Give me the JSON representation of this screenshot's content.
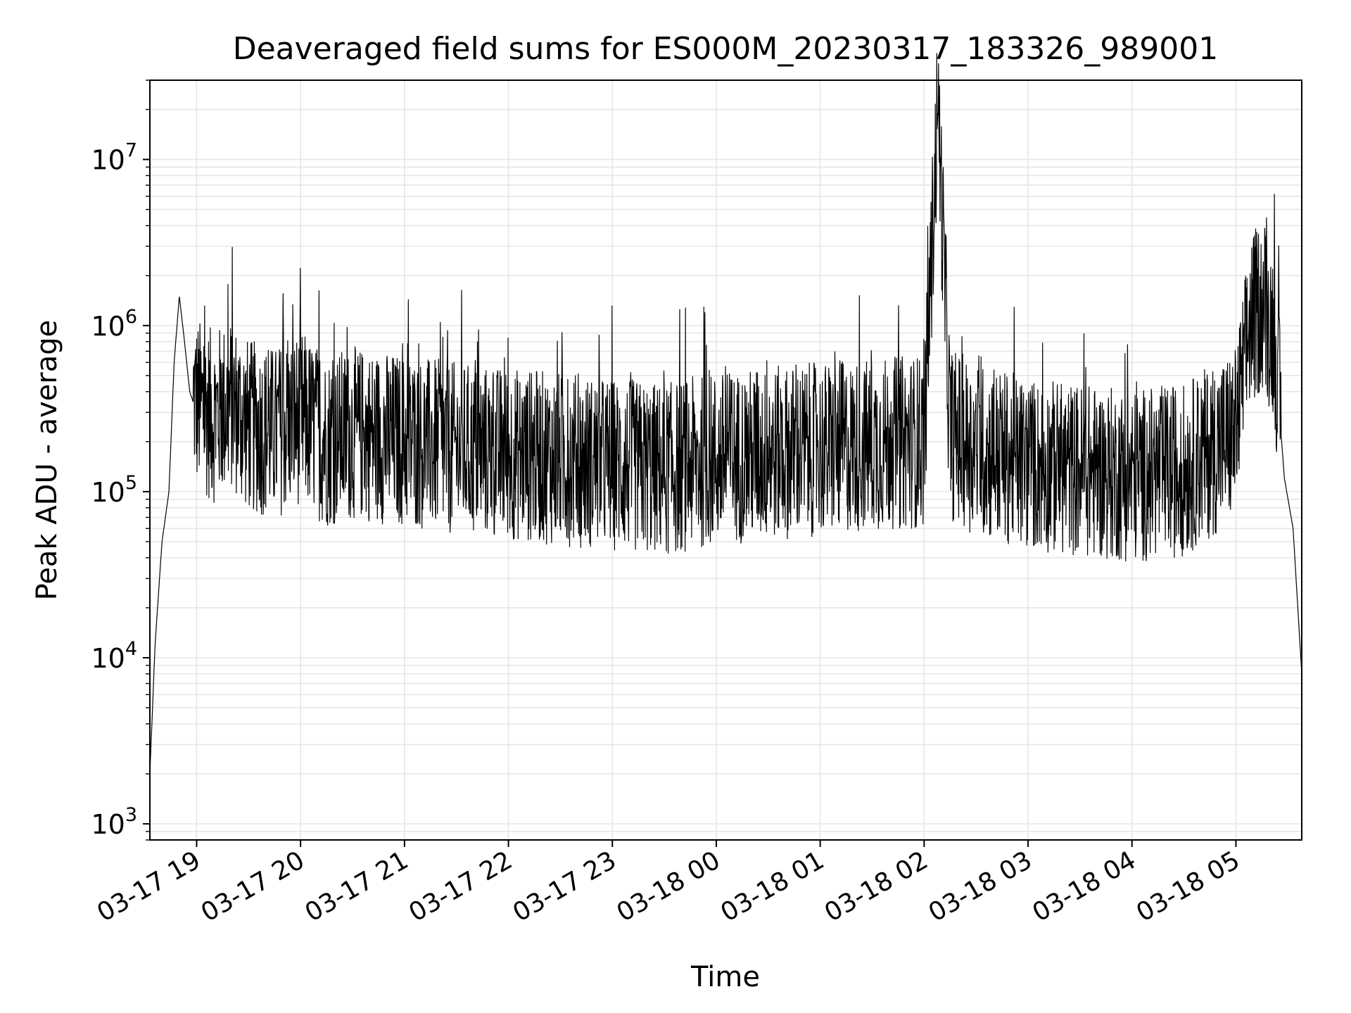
{
  "chart_data": {
    "type": "line",
    "title": "Deaveraged field sums for ES000M_20230317_183326_989001",
    "xlabel": "Time",
    "ylabel": "Peak ADU - average",
    "yscale": "log",
    "ylim": [
      800,
      30000000
    ],
    "xlim": [
      "2023-03-17 18:33",
      "2023-03-18 05:38"
    ],
    "x_ticks": [
      "03-17 19",
      "03-17 20",
      "03-17 21",
      "03-17 22",
      "03-17 23",
      "03-18 00",
      "03-18 01",
      "03-18 02",
      "03-18 03",
      "03-18 04",
      "03-18 05"
    ],
    "y_ticks": [
      {
        "value": 1000,
        "base": "10",
        "exp": "3"
      },
      {
        "value": 10000,
        "base": "10",
        "exp": "4"
      },
      {
        "value": 100000,
        "base": "10",
        "exp": "5"
      },
      {
        "value": 1000000,
        "base": "10",
        "exp": "6"
      },
      {
        "value": 10000000,
        "base": "10",
        "exp": "7"
      }
    ],
    "grid": true,
    "line_color": "#000000",
    "grid_color": "#e6e6e6",
    "series": [
      {
        "x": [
          "2023-03-17 18:33",
          "2023-03-17 18:36",
          "2023-03-17 18:40",
          "2023-03-17 18:44",
          "2023-03-17 18:47",
          "2023-03-17 18:50",
          "2023-03-17 18:53",
          "2023-03-17 18:56",
          "2023-03-17 19:00",
          "2023-03-17 19:10",
          "2023-03-17 19:20",
          "2023-03-17 19:30",
          "2023-03-17 19:45",
          "2023-03-17 20:00",
          "2023-03-17 20:15",
          "2023-03-17 20:30",
          "2023-03-17 21:00",
          "2023-03-17 21:30",
          "2023-03-17 22:00",
          "2023-03-17 22:30",
          "2023-03-17 23:00",
          "2023-03-17 23:30",
          "2023-03-18 00:00",
          "2023-03-18 00:30",
          "2023-03-18 01:00",
          "2023-03-18 01:30",
          "2023-03-18 02:00",
          "2023-03-18 02:08",
          "2023-03-18 02:15",
          "2023-03-18 02:30",
          "2023-03-18 03:00",
          "2023-03-18 03:30",
          "2023-03-18 04:00",
          "2023-03-18 04:30",
          "2023-03-18 05:00",
          "2023-03-18 05:08",
          "2023-03-18 05:15",
          "2023-03-18 05:22",
          "2023-03-18 05:28",
          "2023-03-18 05:33",
          "2023-03-18 05:38"
        ],
        "y": [
          2000,
          12000,
          50000,
          100000,
          600000,
          1500000,
          800000,
          400000,
          300000,
          250000,
          300000,
          220000,
          200000,
          250000,
          180000,
          200000,
          180000,
          160000,
          150000,
          140000,
          130000,
          120000,
          140000,
          150000,
          160000,
          170000,
          180000,
          20000000,
          200000,
          160000,
          130000,
          120000,
          110000,
          120000,
          200000,
          900000,
          1200000,
          800000,
          120000,
          60000,
          8000
        ]
      }
    ]
  }
}
